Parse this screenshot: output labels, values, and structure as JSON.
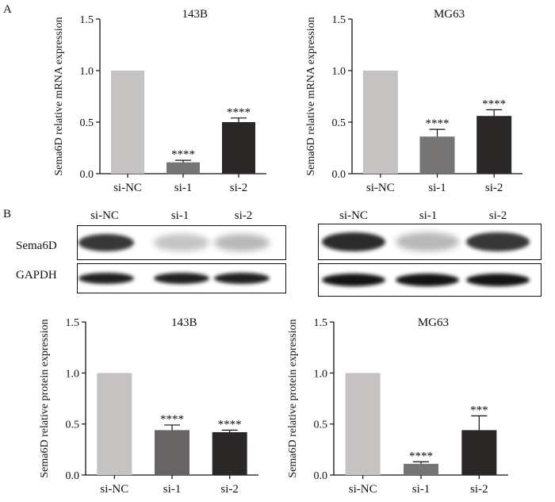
{
  "panel_labels": {
    "a": "A",
    "b": "B"
  },
  "chart_data": [
    {
      "id": "mrna_143b",
      "type": "bar",
      "title": "143B",
      "ylabel": "Sema6D relative mRNA expression",
      "categories": [
        "si-NC",
        "si-1",
        "si-2"
      ],
      "values": [
        1.0,
        0.11,
        0.5
      ],
      "errors": [
        0,
        0.02,
        0.04
      ],
      "annotations": [
        "",
        "****",
        "****"
      ],
      "ylim": [
        0,
        1.5
      ],
      "yticks": [
        "0.0",
        "0.5",
        "1.0",
        "1.5"
      ],
      "colors": [
        "#c7c2c2",
        "#777474",
        "#2b2727"
      ]
    },
    {
      "id": "mrna_mg63",
      "type": "bar",
      "title": "MG63",
      "ylabel": "Sema6D relative mRNA expression",
      "categories": [
        "si-NC",
        "si-1",
        "si-2"
      ],
      "values": [
        1.0,
        0.36,
        0.56
      ],
      "errors": [
        0,
        0.07,
        0.06
      ],
      "annotations": [
        "",
        "****",
        "****"
      ],
      "ylim": [
        0,
        1.5
      ],
      "yticks": [
        "0.0",
        "0.5",
        "1.0",
        "1.5"
      ],
      "colors": [
        "#c7c2c2",
        "#777474",
        "#2b2727"
      ]
    },
    {
      "id": "protein_143b",
      "type": "bar",
      "title": "143B",
      "ylabel": "Sema6D relative protein expression",
      "categories": [
        "si-NC",
        "si-1",
        "si-2"
      ],
      "values": [
        1.0,
        0.44,
        0.42
      ],
      "errors": [
        0,
        0.05,
        0.02
      ],
      "annotations": [
        "",
        "****",
        "****"
      ],
      "ylim": [
        0,
        1.5
      ],
      "yticks": [
        "0.0",
        "0.5",
        "1.0",
        "1.5"
      ],
      "colors": [
        "#c7c2c2",
        "#696464",
        "#2b2727"
      ]
    },
    {
      "id": "protein_mg63",
      "type": "bar",
      "title": "MG63",
      "ylabel": "Sema6D relative protein expression",
      "categories": [
        "si-NC",
        "si-1",
        "si-2"
      ],
      "values": [
        1.0,
        0.11,
        0.44
      ],
      "errors": [
        0,
        0.02,
        0.14
      ],
      "annotations": [
        "",
        "****",
        "***"
      ],
      "ylim": [
        0,
        1.5
      ],
      "yticks": [
        "0.0",
        "0.5",
        "1.0",
        "1.5"
      ],
      "colors": [
        "#c7c2c2",
        "#777474",
        "#2b2727"
      ]
    }
  ],
  "western_blot": {
    "lanes": [
      "si-NC",
      "si-1",
      "si-2"
    ],
    "rows": [
      "Sema6D",
      "GAPDH"
    ],
    "left": {
      "sema6d_intensity": [
        0.85,
        0.25,
        0.3
      ],
      "gapdh_intensity": [
        0.95,
        0.95,
        0.95
      ]
    },
    "right": {
      "sema6d_intensity": [
        0.9,
        0.3,
        0.85
      ],
      "gapdh_intensity": [
        1.0,
        1.0,
        1.0
      ]
    }
  }
}
